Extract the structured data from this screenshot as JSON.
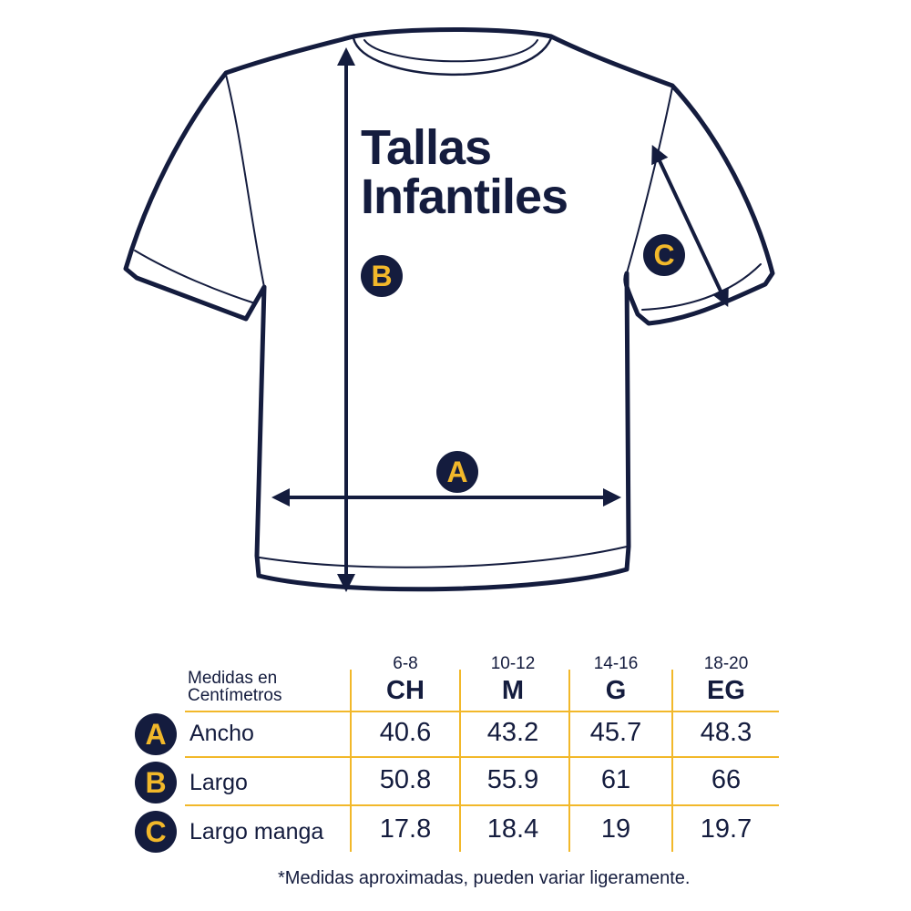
{
  "colors": {
    "navy": "#141c3e",
    "yellow": "#f2b82a"
  },
  "title": {
    "line1": "Tallas",
    "line2": "Infantiles"
  },
  "markers": {
    "a": "A",
    "b": "B",
    "c": "C"
  },
  "table": {
    "header_label": [
      "Medidas en",
      "Centímetros"
    ],
    "columns": [
      {
        "range": "6-8",
        "size": "CH"
      },
      {
        "range": "10-12",
        "size": "M"
      },
      {
        "range": "14-16",
        "size": "G"
      },
      {
        "range": "18-20",
        "size": "EG"
      }
    ],
    "rows": [
      {
        "marker": "A",
        "label": "Ancho",
        "values": [
          "40.6",
          "43.2",
          "45.7",
          "48.3"
        ]
      },
      {
        "marker": "B",
        "label": "Largo",
        "values": [
          "50.8",
          "55.9",
          "61",
          "66"
        ]
      },
      {
        "marker": "C",
        "label": "Largo manga",
        "values": [
          "17.8",
          "18.4",
          "19",
          "19.7"
        ]
      }
    ]
  },
  "footnote": "*Medidas aproximadas, pueden variar ligeramente."
}
